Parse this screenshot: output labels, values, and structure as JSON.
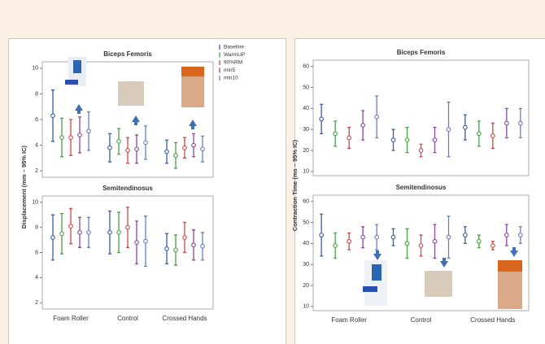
{
  "chart_data": [
    {
      "type": "errorbar",
      "title": "Biceps Femoris",
      "ylabel": "Displacement (mm – 95% IC)",
      "ylim": [
        1.5,
        10.5
      ],
      "yticks": [
        2,
        4,
        6,
        8,
        10
      ],
      "series": [
        {
          "name": "Baseline",
          "color": "#3a5fa8",
          "values": [
            6.3,
            3.8,
            3.5
          ],
          "errors": [
            2.0,
            1.1,
            0.9
          ]
        },
        {
          "name": "WarmUP",
          "color": "#4aa24a",
          "values": [
            4.6,
            4.3,
            3.2
          ],
          "errors": [
            1.5,
            1.0,
            1.0
          ]
        },
        {
          "name": "90%RM",
          "color": "#d04848",
          "values": [
            4.6,
            3.6,
            3.8
          ],
          "errors": [
            1.4,
            1.0,
            0.8
          ]
        },
        {
          "name": "min5",
          "color": "#8a4a9a",
          "values": [
            4.8,
            3.7,
            4.0
          ],
          "errors": [
            1.4,
            1.1,
            0.9
          ]
        },
        {
          "name": "min10",
          "color": "#6a7ec8",
          "values": [
            5.1,
            4.2,
            3.7
          ],
          "errors": [
            1.5,
            1.3,
            1.0
          ]
        }
      ]
    },
    {
      "type": "errorbar",
      "title": "Semitendinosus",
      "categories": [
        "Foam Roller",
        "Control",
        "Crossed Hands"
      ],
      "ylim": [
        1.5,
        10.5
      ],
      "yticks": [
        2,
        4,
        6,
        8,
        10
      ],
      "series": [
        {
          "color": "#3a5fa8",
          "values": [
            7.2,
            7.6,
            6.3
          ],
          "errors": [
            1.8,
            1.7,
            1.2
          ]
        },
        {
          "color": "#4aa24a",
          "values": [
            7.5,
            7.6,
            6.2
          ],
          "errors": [
            1.6,
            1.6,
            1.2
          ]
        },
        {
          "color": "#d04848",
          "values": [
            8.1,
            8.0,
            7.2
          ],
          "errors": [
            1.4,
            1.6,
            1.2
          ]
        },
        {
          "color": "#8a4a9a",
          "values": [
            7.6,
            6.8,
            6.6
          ],
          "errors": [
            1.2,
            1.7,
            1.2
          ]
        },
        {
          "color": "#6a7ec8",
          "values": [
            7.6,
            6.9,
            6.5
          ],
          "errors": [
            1.2,
            2.0,
            1.1
          ]
        }
      ]
    },
    {
      "type": "errorbar",
      "title": "Biceps Femoris",
      "ylabel": "Contraction Time (ms – 95% IC)",
      "ylim": [
        8,
        63
      ],
      "yticks": [
        10,
        20,
        30,
        40,
        50,
        60
      ],
      "series": [
        {
          "color": "#3a5fa8",
          "values": [
            35,
            25,
            31
          ],
          "errors": [
            7,
            5,
            6
          ]
        },
        {
          "color": "#4aa24a",
          "values": [
            28,
            25,
            28
          ],
          "errors": [
            6,
            6,
            6
          ]
        },
        {
          "color": "#d04848",
          "values": [
            26,
            20,
            27
          ],
          "errors": [
            5,
            3,
            6
          ]
        },
        {
          "color": "#8a4a9a",
          "values": [
            32,
            25,
            33
          ],
          "errors": [
            7,
            6,
            7
          ]
        },
        {
          "color": "#6a7ec8",
          "values": [
            36,
            30,
            33
          ],
          "errors": [
            10,
            13,
            7
          ]
        }
      ]
    },
    {
      "type": "errorbar",
      "title": "Semitendinosus",
      "categories": [
        "Foam Roller",
        "Control",
        "Crossed Hands"
      ],
      "ylim": [
        8,
        63
      ],
      "yticks": [
        10,
        20,
        30,
        40,
        50,
        60
      ],
      "series": [
        {
          "color": "#3a5fa8",
          "values": [
            44,
            43,
            44
          ],
          "errors": [
            10,
            4,
            4
          ]
        },
        {
          "color": "#4aa24a",
          "values": [
            39,
            40,
            41
          ],
          "errors": [
            6,
            7,
            3
          ]
        },
        {
          "color": "#d04848",
          "values": [
            41,
            39,
            39
          ],
          "errors": [
            4,
            5,
            2
          ]
        },
        {
          "color": "#8a4a9a",
          "values": [
            43,
            41,
            44
          ],
          "errors": [
            5,
            8,
            5
          ]
        },
        {
          "color": "#6a7ec8",
          "values": [
            43,
            43,
            44
          ],
          "errors": [
            6,
            10,
            4
          ]
        }
      ]
    }
  ]
}
